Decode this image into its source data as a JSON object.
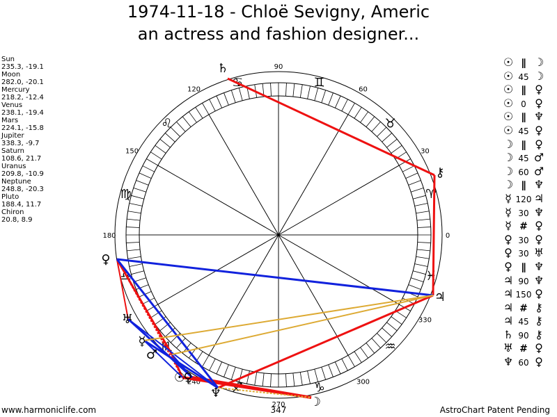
{
  "header": {
    "title_line1": "1974-11-18 - Chloë Sevigny, Americ",
    "title_line2": "an actress and fashion designer..."
  },
  "positions": [
    {
      "name": "Sun",
      "coords": "235.3, -19.1"
    },
    {
      "name": "Moon",
      "coords": "282.0, -20.1"
    },
    {
      "name": "Mercury",
      "coords": "218.2, -12.4"
    },
    {
      "name": "Venus",
      "coords": "238.1, -19.4"
    },
    {
      "name": "Mars",
      "coords": "224.1, -15.8"
    },
    {
      "name": "Jupiter",
      "coords": "338.3, -9.7"
    },
    {
      "name": "Saturn",
      "coords": "108.6, 21.7"
    },
    {
      "name": "Uranus",
      "coords": "209.8, -10.9"
    },
    {
      "name": "Neptune",
      "coords": "248.8, -20.3"
    },
    {
      "name": "Pluto",
      "coords": "188.4, 11.7"
    },
    {
      "name": "Chiron",
      "coords": "20.8, 8.9"
    }
  ],
  "aspects": [
    {
      "p1": "☉",
      "aspect": "∥",
      "p2": "☽"
    },
    {
      "p1": "☉",
      "aspect": "45",
      "p2": "☽"
    },
    {
      "p1": "☉",
      "aspect": "∥",
      "p2": "♀"
    },
    {
      "p1": "☉",
      "aspect": "0",
      "p2": "♀"
    },
    {
      "p1": "☉",
      "aspect": "∥",
      "p2": "♆"
    },
    {
      "p1": "☉",
      "aspect": "45",
      "p2": "♀"
    },
    {
      "p1": "☽",
      "aspect": "∥",
      "p2": "♀"
    },
    {
      "p1": "☽",
      "aspect": "45",
      "p2": "♂"
    },
    {
      "p1": "☽",
      "aspect": "60",
      "p2": "♂"
    },
    {
      "p1": "☽",
      "aspect": "∥",
      "p2": "♆"
    },
    {
      "p1": "☿",
      "aspect": "120",
      "p2": "♃"
    },
    {
      "p1": "☿",
      "aspect": "30",
      "p2": "♆"
    },
    {
      "p1": "☿",
      "aspect": "#",
      "p2": "♀"
    },
    {
      "p1": "♀",
      "aspect": "30",
      "p2": "♀"
    },
    {
      "p1": "♀",
      "aspect": "30",
      "p2": "♅"
    },
    {
      "p1": "♀",
      "aspect": "∥",
      "p2": "♆"
    },
    {
      "p1": "♃",
      "aspect": "90",
      "p2": "♆"
    },
    {
      "p1": "♃",
      "aspect": "150",
      "p2": "♀"
    },
    {
      "p1": "♃",
      "aspect": "#",
      "p2": "⚷"
    },
    {
      "p1": "♃",
      "aspect": "45",
      "p2": "⚷"
    },
    {
      "p1": "♄",
      "aspect": "90",
      "p2": "⚷"
    },
    {
      "p1": "♅",
      "aspect": "#",
      "p2": "♀"
    },
    {
      "p1": "♆",
      "aspect": "60",
      "p2": "♀"
    }
  ],
  "wheel": {
    "degree_labels": [
      "90",
      "60",
      "30",
      "0",
      "330",
      "300",
      "270",
      "240",
      "180",
      "150",
      "120"
    ],
    "center_number": "347",
    "planets": [
      {
        "glyph": "♄",
        "name": "saturn"
      },
      {
        "glyph": "⚷",
        "name": "chiron"
      },
      {
        "glyph": "♀",
        "name": "pluto"
      },
      {
        "glyph": "♃",
        "name": "jupiter"
      },
      {
        "glyph": "♅",
        "name": "uranus"
      },
      {
        "glyph": "☿",
        "name": "mercury"
      },
      {
        "glyph": "♂",
        "name": "mars"
      },
      {
        "glyph": "☉",
        "name": "sun"
      },
      {
        "glyph": "♀",
        "name": "venus"
      },
      {
        "glyph": "♆",
        "name": "neptune"
      },
      {
        "glyph": "☽",
        "name": "moon"
      }
    ],
    "signs": [
      "♊",
      "♉",
      "♈",
      "♓",
      "♒",
      "♑",
      "♐",
      "♏",
      "♎",
      "♍",
      "♌",
      "♋"
    ]
  },
  "footer": {
    "left": "www.harmoniclife.com",
    "right": "AstroChart Patent Pending"
  },
  "colors": {
    "red": "#ee1111",
    "blue": "#1122dd",
    "gold": "#ddaa33"
  }
}
